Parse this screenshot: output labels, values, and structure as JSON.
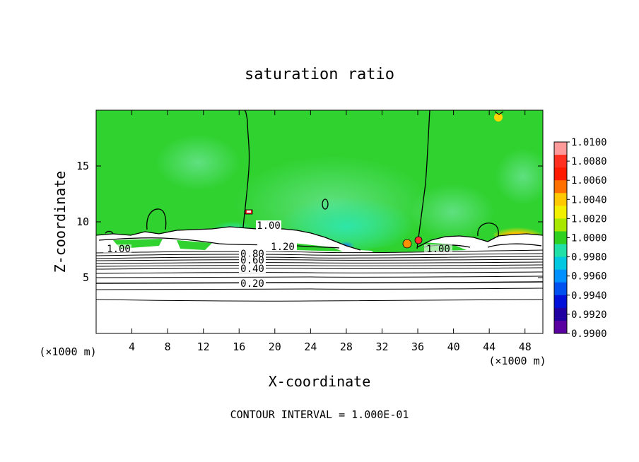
{
  "chart_data": {
    "type": "heatmap",
    "title": "saturation ratio",
    "xlabel": "X-coordinate",
    "ylabel": "Z-coordinate",
    "x_unit": "(×1000 m)",
    "z_unit": "(×1000 m)",
    "xlim": [
      0,
      50
    ],
    "ylim": [
      0,
      20
    ],
    "x_ticks": [
      4,
      8,
      12,
      16,
      20,
      24,
      28,
      32,
      36,
      40,
      44,
      48
    ],
    "y_ticks": [
      5,
      10,
      15
    ],
    "colorbar": {
      "ticks": [
        "1.0100",
        "1.0080",
        "1.0060",
        "1.0040",
        "1.0020",
        "1.0000",
        "0.9980",
        "0.9960",
        "0.9940",
        "0.9920",
        "0.9900"
      ],
      "colors": [
        "#ff9a9a",
        "#ff3020",
        "#ff1a00",
        "#ff7000",
        "#ffc800",
        "#f2f000",
        "#a8e800",
        "#30d020",
        "#20e0a8",
        "#00c8e0",
        "#0090ff",
        "#0050f0",
        "#0010d8",
        "#2000a0",
        "#5a00a0"
      ]
    },
    "contour_labels": [
      "1.00",
      "1.20",
      "0.80",
      "0.60",
      "0.40",
      "0.20",
      "1.00",
      "1.00"
    ],
    "footer": "CONTOUR INTERVAL = 1.000E-01"
  }
}
